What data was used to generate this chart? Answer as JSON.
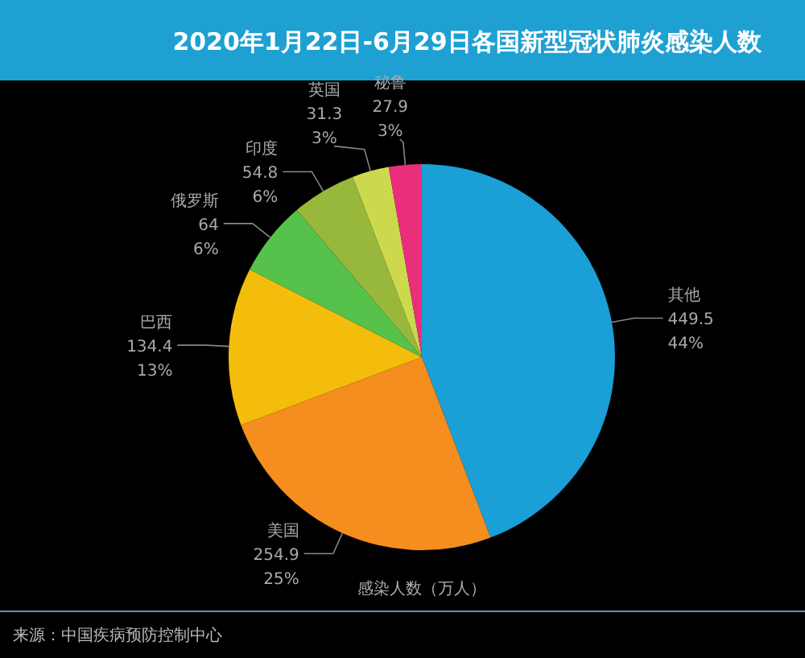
{
  "chart_data": {
    "type": "pie",
    "title": "2020年1月22日-6月29日各国新型冠状肺炎感染人数",
    "categories": [
      "其他",
      "美国",
      "巴西",
      "俄罗斯",
      "印度",
      "英国",
      "秘鲁"
    ],
    "values": [
      449.5,
      254.9,
      134.4,
      64,
      54.8,
      31.3,
      27.9
    ],
    "colors": [
      "#1a9fd6",
      "#f58d1f",
      "#f4bd0c",
      "#56c24c",
      "#97b83b",
      "#cdd94c",
      "#ea2e7c"
    ],
    "value_labels": [
      "449.5 44%",
      "254.9 25%",
      "134.4 13%",
      "64 6%",
      "54.8 6%",
      "31.3 3%",
      "27.9 3%"
    ],
    "annotations": [
      "感染人数（万人）",
      "来源：中国疾病预防控制中心"
    ]
  }
}
